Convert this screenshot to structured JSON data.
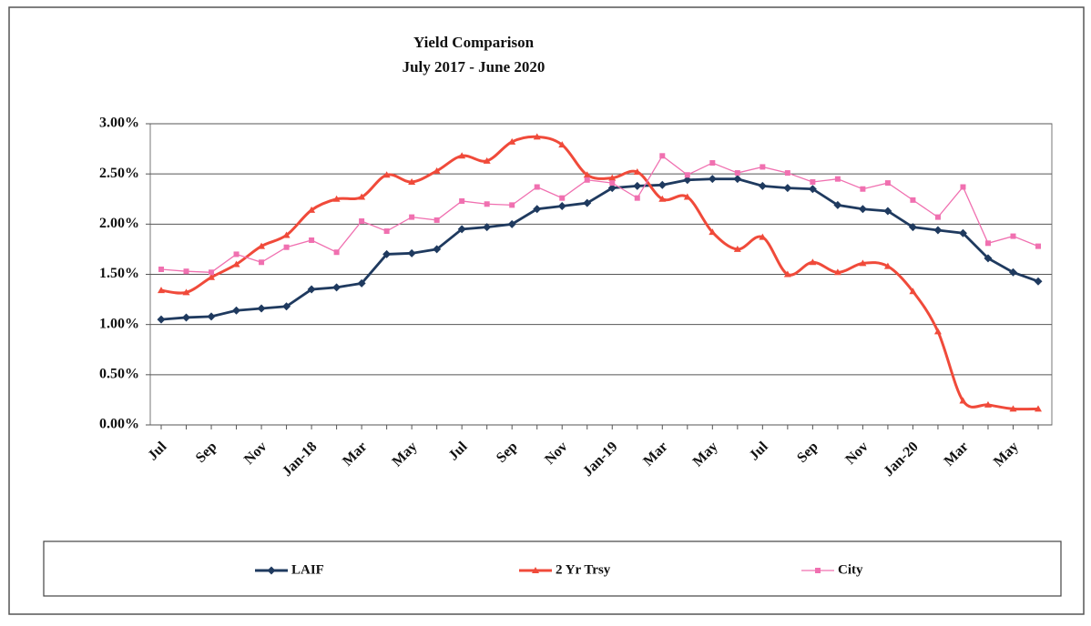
{
  "chart_data": {
    "type": "line",
    "title": "Yield Comparison",
    "subtitle": "July 2017 - June 2020",
    "categories": [
      "Jul",
      null,
      "Sep",
      null,
      "Nov",
      null,
      "Jan-18",
      null,
      "Mar",
      null,
      "May",
      null,
      "Jul",
      null,
      "Sep",
      null,
      "Nov",
      null,
      "Jan-19",
      null,
      "Mar",
      null,
      "May",
      null,
      "Jul",
      null,
      "Sep",
      null,
      "Nov",
      null,
      "Jan-20",
      null,
      "Mar",
      null,
      "May",
      null
    ],
    "series": [
      {
        "name": "LAIF",
        "color": "#1f3a5f",
        "marker": "diamond",
        "values": [
          1.05,
          1.07,
          1.08,
          1.14,
          1.16,
          1.18,
          1.35,
          1.37,
          1.41,
          1.7,
          1.71,
          1.75,
          1.95,
          1.97,
          2.0,
          2.15,
          2.18,
          2.21,
          2.36,
          2.38,
          2.39,
          2.44,
          2.45,
          2.45,
          2.38,
          2.36,
          2.35,
          2.19,
          2.15,
          2.13,
          1.97,
          1.94,
          1.91,
          1.66,
          1.52,
          1.43
        ]
      },
      {
        "name": "2 Yr Trsy",
        "color": "#f04a3a",
        "marker": "triangle",
        "values": [
          1.34,
          1.32,
          1.47,
          1.6,
          1.78,
          1.89,
          2.14,
          2.25,
          2.27,
          2.49,
          2.42,
          2.53,
          2.68,
          2.63,
          2.82,
          2.87,
          2.79,
          2.49,
          2.46,
          2.52,
          2.25,
          2.27,
          1.92,
          1.75,
          1.87,
          1.5,
          1.62,
          1.52,
          1.61,
          1.58,
          1.33,
          0.93,
          0.24,
          0.2,
          0.16,
          0.16
        ]
      },
      {
        "name": "City",
        "color": "#f070b0",
        "marker": "square",
        "values": [
          1.55,
          1.53,
          1.52,
          1.7,
          1.62,
          1.77,
          1.84,
          1.72,
          2.03,
          1.93,
          2.07,
          2.04,
          2.23,
          2.2,
          2.19,
          2.37,
          2.26,
          2.44,
          2.41,
          2.26,
          2.68,
          2.49,
          2.61,
          2.51,
          2.57,
          2.51,
          2.42,
          2.45,
          2.35,
          2.41,
          2.24,
          2.07,
          2.37,
          1.81,
          1.88,
          1.78
        ]
      }
    ],
    "ylim": [
      0,
      3
    ],
    "yticks": [
      {
        "value": 0,
        "label": "0.00%"
      },
      {
        "value": 0.5,
        "label": "0.50%"
      },
      {
        "value": 1,
        "label": "1.00%"
      },
      {
        "value": 1.5,
        "label": "1.50%"
      },
      {
        "value": 2,
        "label": "2.00%"
      },
      {
        "value": 2.5,
        "label": "2.50%"
      },
      {
        "value": 3,
        "label": "3.00%"
      }
    ],
    "grid": true,
    "legend": "bottom"
  }
}
